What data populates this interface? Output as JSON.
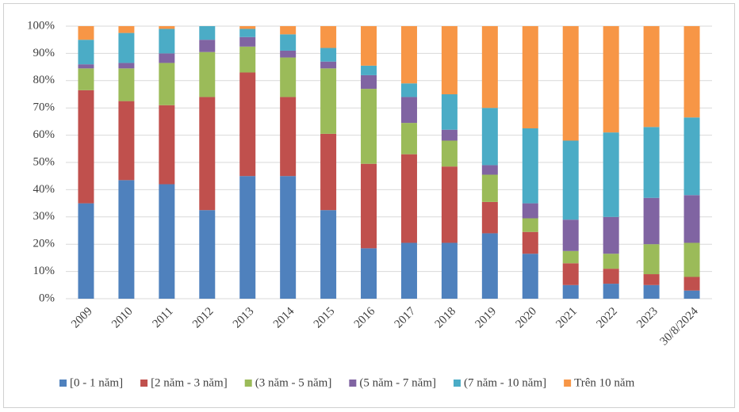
{
  "chart_data": {
    "type": "stacked_bar_percent",
    "categories": [
      "2009",
      "2010",
      "2011",
      "2012",
      "2013",
      "2014",
      "2015",
      "2016",
      "2017",
      "2018",
      "2019",
      "2020",
      "2021",
      "2022",
      "2023",
      "30/8/2024"
    ],
    "series": [
      {
        "name": "[0 - 1 năm]",
        "color": "#4f81bd",
        "values": [
          35,
          43.5,
          42,
          32.5,
          45,
          45,
          32.5,
          18.5,
          20.5,
          20.5,
          24,
          16.5,
          5,
          5.5,
          5,
          3
        ]
      },
      {
        "name": "[2 năm - 3 năm]",
        "color": "#c0504d",
        "values": [
          41.5,
          29,
          29,
          41.5,
          38,
          29,
          28,
          31,
          32.5,
          28,
          11.5,
          8,
          8,
          5.5,
          4,
          5
        ]
      },
      {
        "name": "(3 năm - 5 năm]",
        "color": "#9bbb59",
        "values": [
          8,
          12,
          15.5,
          16.5,
          9.5,
          14.5,
          24,
          27.5,
          11.5,
          9.5,
          10,
          5,
          4.5,
          5.5,
          11,
          12.5
        ]
      },
      {
        "name": "(5 năm - 7 năm]",
        "color": "#8064a2",
        "values": [
          1.5,
          2,
          3.5,
          4.5,
          3.5,
          2.5,
          2.5,
          5,
          9.5,
          4,
          3.5,
          5.5,
          11.5,
          13.5,
          17,
          17.5
        ]
      },
      {
        "name": "(7 năm - 10 năm]",
        "color": "#4bacc6",
        "values": [
          9,
          11,
          9,
          5,
          3,
          6,
          5,
          3.5,
          5,
          13,
          21,
          27.5,
          29,
          31,
          26,
          28.5
        ]
      },
      {
        "name": "Trên 10 năm",
        "color": "#f79646",
        "values": [
          5,
          2.5,
          1,
          0,
          1,
          3,
          8,
          14.5,
          21,
          25,
          30,
          37.5,
          42,
          39,
          37,
          33.5
        ]
      }
    ],
    "ylim": [
      0,
      100
    ],
    "yticks": [
      {
        "value": 0,
        "label": "0%"
      },
      {
        "value": 10,
        "label": "10%"
      },
      {
        "value": 20,
        "label": "20%"
      },
      {
        "value": 30,
        "label": "30%"
      },
      {
        "value": 40,
        "label": "40%"
      },
      {
        "value": 50,
        "label": "50%"
      },
      {
        "value": 60,
        "label": "60%"
      },
      {
        "value": 70,
        "label": "70%"
      },
      {
        "value": 80,
        "label": "80%"
      },
      {
        "value": 90,
        "label": "90%"
      },
      {
        "value": 100,
        "label": "100%"
      }
    ],
    "grid": true
  }
}
